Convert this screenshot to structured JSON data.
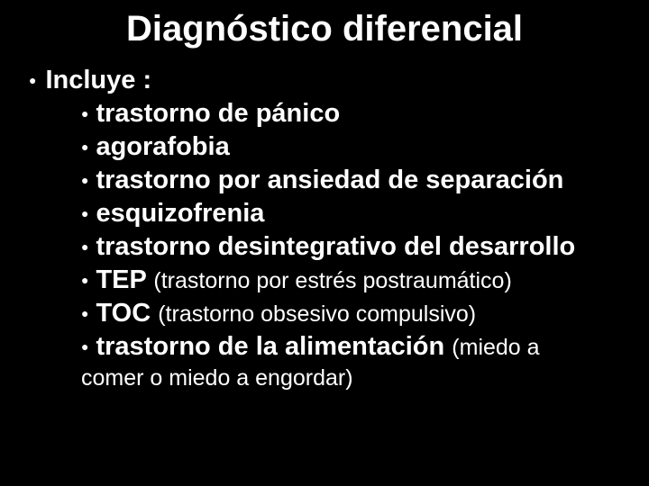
{
  "title": {
    "text": "Diagnóstico diferencial",
    "fontsize": 40,
    "color": "#ffffff",
    "weight": "bold"
  },
  "bullet_glyph": "●",
  "bullet_color": "#ffffff",
  "level1": {
    "text": "Incluye :",
    "fontsize": 29,
    "bullet_size": 14
  },
  "level2_fontsize": 29,
  "level2_bullet_size": 14,
  "paren_fontsize": 25,
  "items": [
    {
      "main": "trastorno de pánico"
    },
    {
      "main": "agorafobia"
    },
    {
      "main": "trastorno por ansiedad de separación"
    },
    {
      "main": "esquizofrenia"
    },
    {
      "main": "trastorno desintegrativo del desarrollo"
    },
    {
      "main": "TEP ",
      "paren": "(trastorno por estrés postraumático)"
    },
    {
      "main": "TOC ",
      "paren": "(trastorno obsesivo compulsivo)"
    },
    {
      "main": "trastorno de la alimentación ",
      "paren": "(miedo a"
    }
  ],
  "continuation": {
    "text": "comer o miedo a engordar)",
    "fontsize": 25
  },
  "background_color": "#000000",
  "text_color": "#ffffff"
}
